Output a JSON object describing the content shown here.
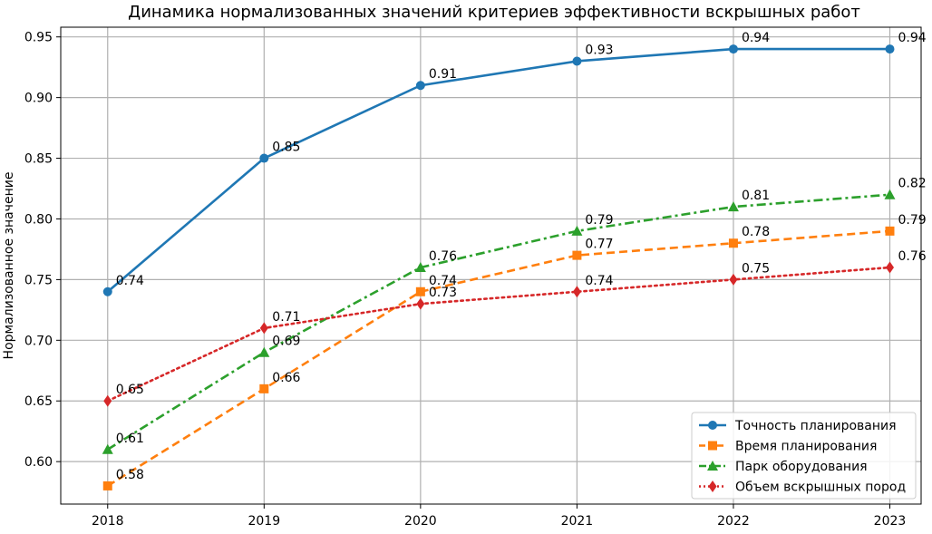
{
  "chart_data": {
    "type": "line",
    "title": "Динамика нормализованных значений критериев эффективности вскрышных работ",
    "xlabel": "",
    "ylabel": "Нормализованное значение",
    "x": [
      "2018",
      "2019",
      "2020",
      "2021",
      "2022",
      "2023"
    ],
    "xlim": [
      2017.7,
      2023.2
    ],
    "ylim": [
      0.565,
      0.958
    ],
    "yticks": [
      "0.60",
      "0.65",
      "0.70",
      "0.75",
      "0.80",
      "0.85",
      "0.90",
      "0.95"
    ],
    "grid": true,
    "legend_position": "bottom-right",
    "series": [
      {
        "name": "Точность планирования",
        "values": [
          0.74,
          0.85,
          0.91,
          0.93,
          0.94,
          0.94
        ],
        "labels": [
          "0.74",
          "0.85",
          "0.91",
          "0.93",
          "0.94",
          "0.94"
        ],
        "color": "#1f77b4",
        "line_style": "solid",
        "marker": "circle"
      },
      {
        "name": "Время планирования",
        "values": [
          0.58,
          0.66,
          0.74,
          0.77,
          0.78,
          0.79
        ],
        "labels": [
          "0.58",
          "0.66",
          "0.74",
          "0.77",
          "0.78",
          "0.79"
        ],
        "color": "#ff7f0e",
        "line_style": "dashed",
        "marker": "square"
      },
      {
        "name": "Парк оборудования",
        "values": [
          0.61,
          0.69,
          0.76,
          0.79,
          0.81,
          0.82
        ],
        "labels": [
          "0.61",
          "0.69",
          "0.76",
          "0.79",
          "0.81",
          "0.82"
        ],
        "color": "#2ca02c",
        "line_style": "dashdot",
        "marker": "triangle"
      },
      {
        "name": "Объем вскрышных пород",
        "values": [
          0.65,
          0.71,
          0.73,
          0.74,
          0.75,
          0.76
        ],
        "labels": [
          "0.65",
          "0.71",
          "0.73",
          "0.74",
          "0.75",
          "0.76"
        ],
        "color": "#d62728",
        "line_style": "dotted",
        "marker": "diamond"
      }
    ]
  }
}
